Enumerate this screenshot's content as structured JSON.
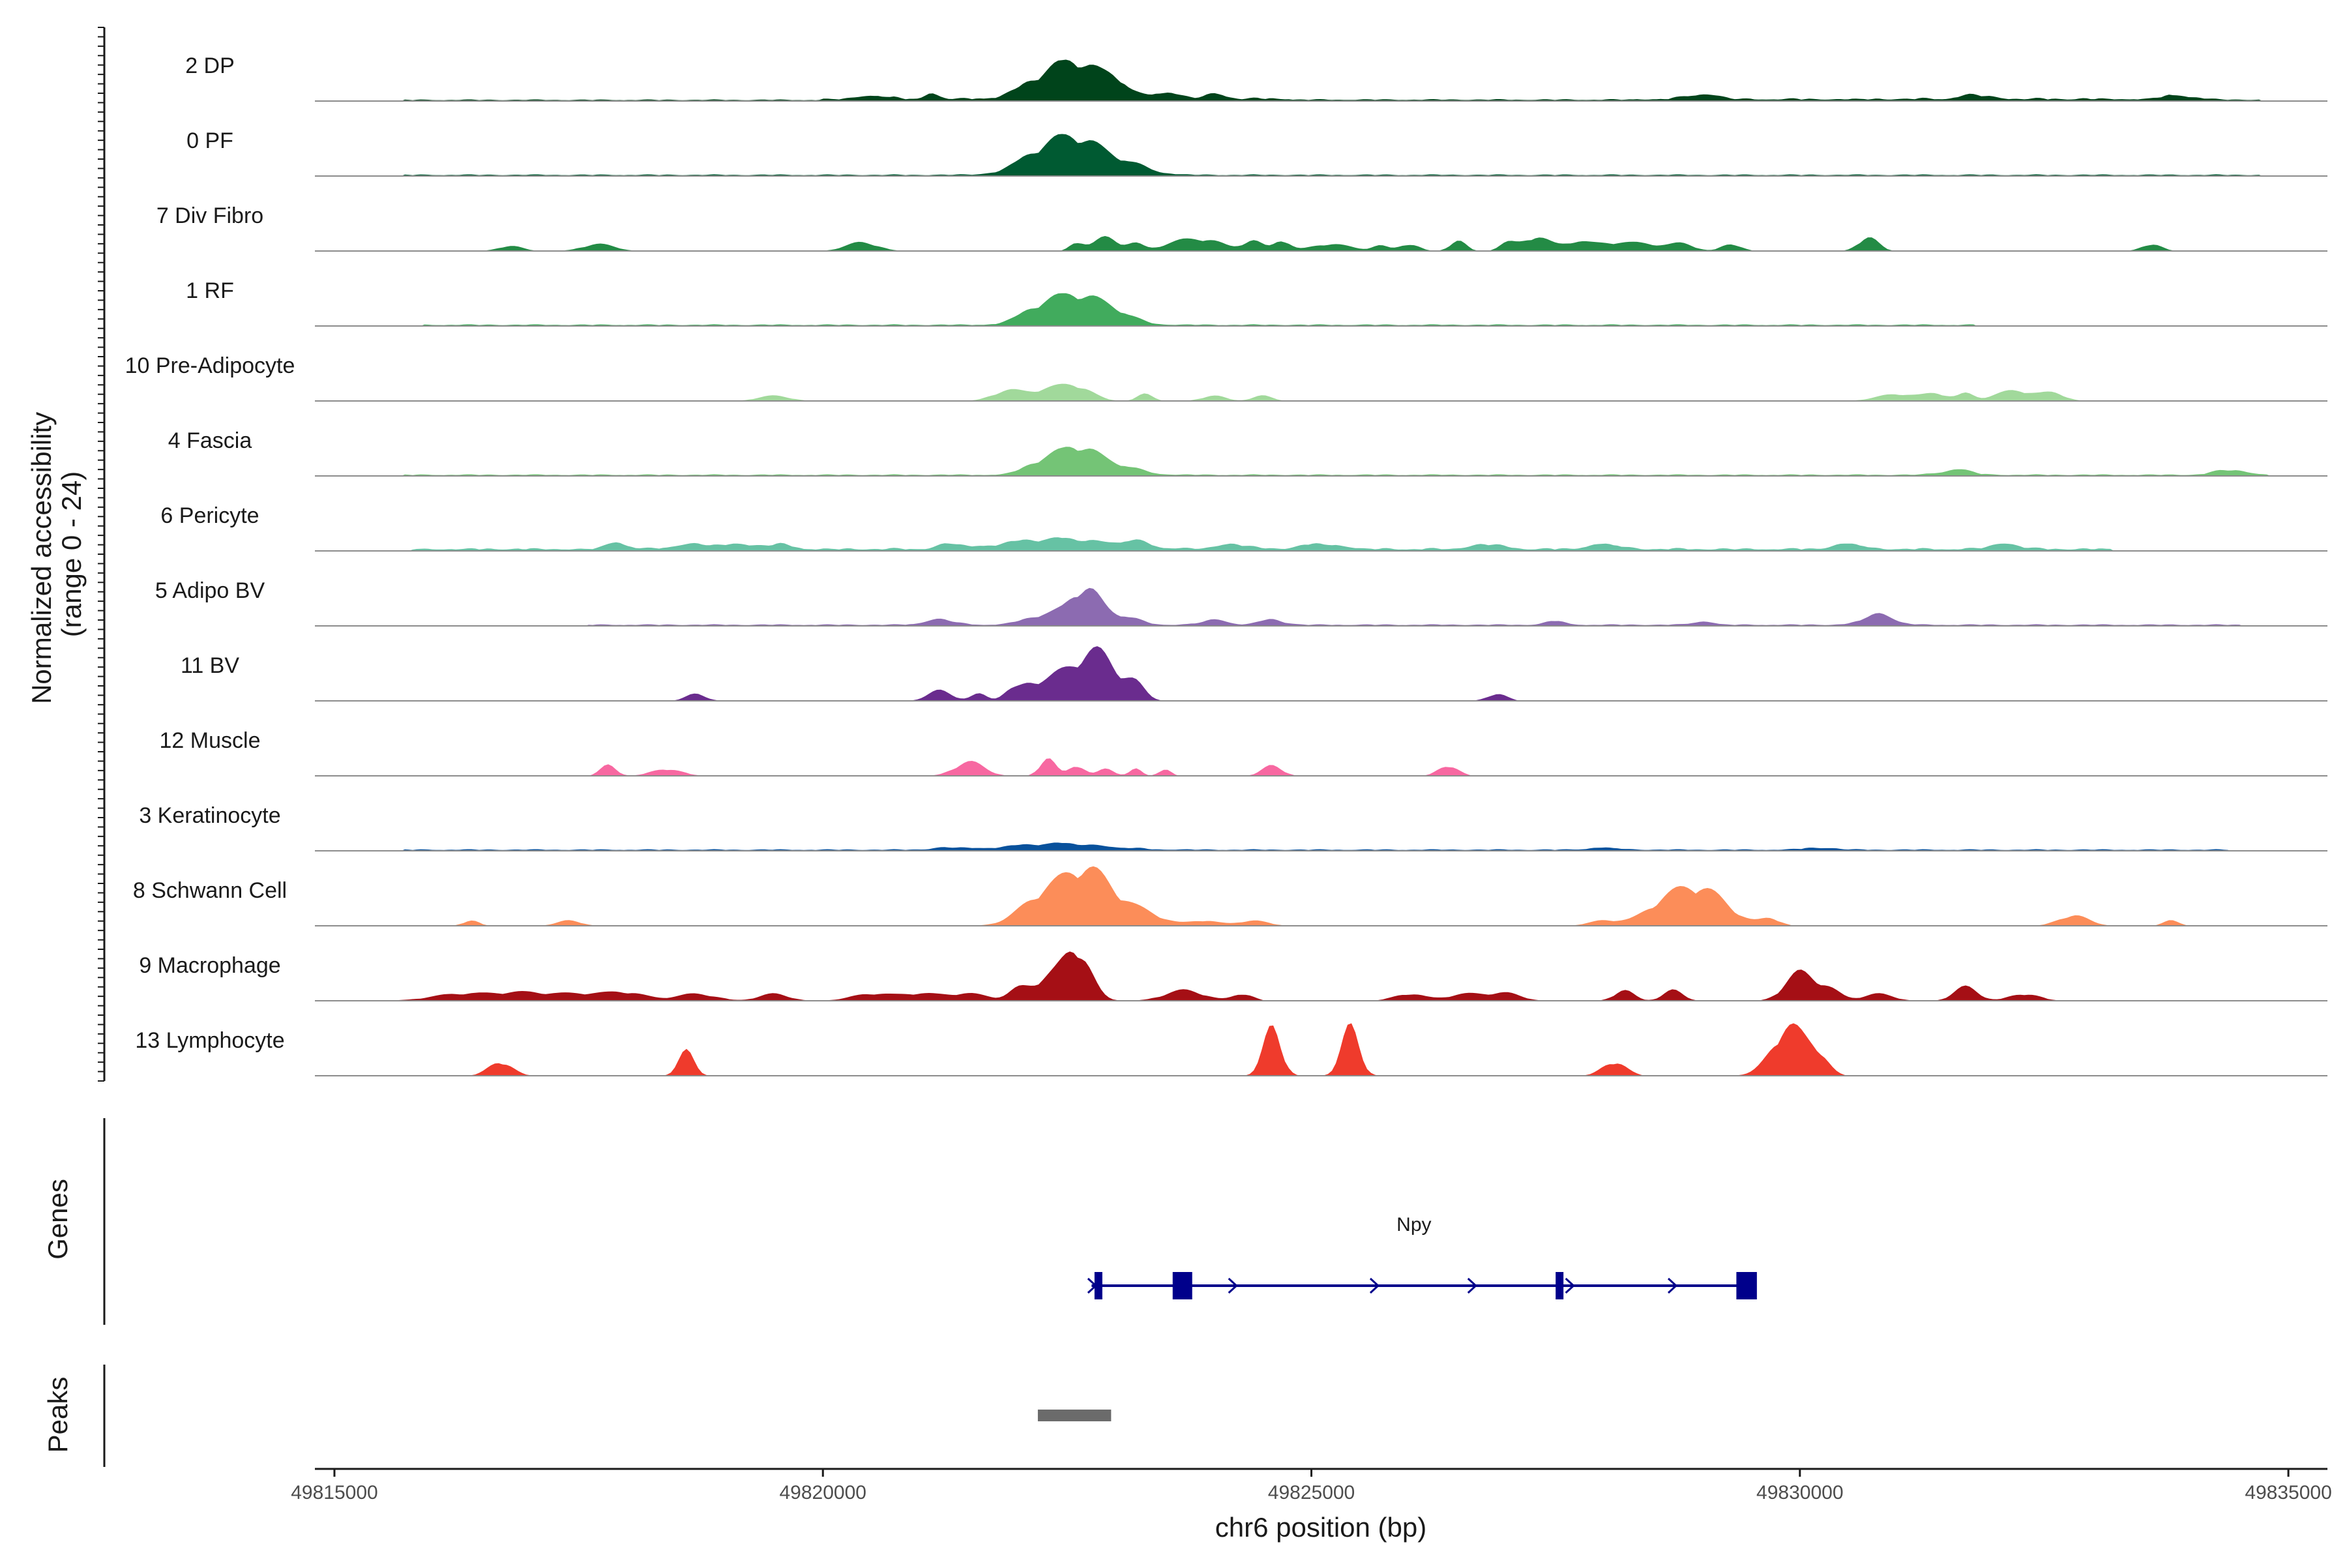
{
  "chart_data": {
    "type": "area",
    "title": "",
    "ylabel_line1": "Normalized accessibility",
    "ylabel_line2": "(range 0 - 24)",
    "xlabel": "chr6 position (bp)",
    "xlim": [
      49814800,
      49835400
    ],
    "ylim": [
      0,
      24
    ],
    "xticks": [
      49815000,
      49820000,
      49825000,
      49830000,
      49835000
    ],
    "xtick_labels": [
      "49815000",
      "49820000",
      "49825000",
      "49830000",
      "49835000"
    ],
    "tracks": [
      {
        "label": "2 DP",
        "color": "#00441b",
        "base": [
          [
            49815700,
            0.5
          ],
          [
            49820000,
            0.8
          ],
          [
            49820700,
            1.0
          ],
          [
            49824800,
            0.6
          ],
          [
            49828300,
            0.8
          ],
          [
            49830700,
            0.9
          ],
          [
            49833800,
            0.6
          ],
          [
            49834700,
            0.4
          ]
        ],
        "peaks": [
          [
            49822600,
            10,
            280
          ],
          [
            49822200,
            3,
            220
          ],
          [
            49823000,
            3,
            120
          ],
          [
            49823500,
            2,
            120
          ],
          [
            49824000,
            1.5,
            100
          ],
          [
            49820500,
            1.2,
            120
          ],
          [
            49821100,
            1.5,
            60
          ],
          [
            49829000,
            1.5,
            150
          ],
          [
            49831800,
            1.2,
            150
          ],
          [
            49833900,
            1.2,
            150
          ]
        ]
      },
      {
        "label": "0 PF",
        "color": "#005a32",
        "base": [
          [
            49815700,
            0.5
          ],
          [
            49834700,
            0.5
          ]
        ],
        "peaks": [
          [
            49822600,
            10,
            320
          ],
          [
            49822200,
            3,
            250
          ],
          [
            49823200,
            1.5,
            200
          ]
        ]
      },
      {
        "label": "7 Div Fibro",
        "color": "#238b45",
        "base": [],
        "peaks": [
          [
            49816800,
            1.5,
            120
          ],
          [
            49817700,
            2,
            160
          ],
          [
            49820400,
            2.5,
            160
          ],
          [
            49822600,
            2.5,
            70
          ],
          [
            49822900,
            4,
            120
          ],
          [
            49823200,
            2,
            80
          ],
          [
            49823700,
            3,
            200
          ],
          [
            49824000,
            2,
            150
          ],
          [
            49824400,
            3,
            100
          ],
          [
            49824700,
            3,
            80
          ],
          [
            49825200,
            2,
            200
          ],
          [
            49825700,
            1.5,
            80
          ],
          [
            49826000,
            2,
            100
          ],
          [
            49826500,
            3,
            80
          ],
          [
            49827000,
            2,
            80
          ],
          [
            49827300,
            4,
            150
          ],
          [
            49827700,
            2,
            120
          ],
          [
            49828000,
            2,
            200
          ],
          [
            49828400,
            2,
            200
          ],
          [
            49828800,
            2,
            120
          ],
          [
            49829300,
            2,
            100
          ],
          [
            49830700,
            4,
            100
          ],
          [
            49833600,
            2,
            100
          ]
        ]
      },
      {
        "label": "1 RF",
        "color": "#41ab5d",
        "base": [
          [
            49815900,
            0.5
          ],
          [
            49831800,
            0.5
          ]
        ],
        "peaks": [
          [
            49822600,
            8,
            280
          ],
          [
            49822200,
            3,
            200
          ],
          [
            49823000,
            2,
            200
          ]
        ]
      },
      {
        "label": "10 Pre-Adipocyte",
        "color": "#a1d99b",
        "base": [],
        "peaks": [
          [
            49819500,
            1.5,
            160
          ],
          [
            49821900,
            3,
            160
          ],
          [
            49822300,
            3,
            160
          ],
          [
            49822600,
            4,
            160
          ],
          [
            49823300,
            2,
            80
          ],
          [
            49824000,
            1.5,
            120
          ],
          [
            49824500,
            1.5,
            100
          ],
          [
            49831000,
            2,
            200
          ],
          [
            49831400,
            2,
            120
          ],
          [
            49831700,
            2,
            80
          ],
          [
            49832200,
            3,
            200
          ],
          [
            49832600,
            2,
            120
          ]
        ]
      },
      {
        "label": "4 Fascia",
        "color": "#74c476",
        "base": [
          [
            49815700,
            0.5
          ],
          [
            49834800,
            0.5
          ]
        ],
        "peaks": [
          [
            49822600,
            8,
            250
          ],
          [
            49822200,
            2,
            150
          ],
          [
            49823100,
            1.5,
            200
          ],
          [
            49831600,
            1.5,
            150
          ],
          [
            49834400,
            1.5,
            150
          ]
        ]
      },
      {
        "label": "6 Pericyte",
        "color": "#66c2a4",
        "base": [
          [
            49815800,
            0.8
          ],
          [
            49833200,
            0.6
          ]
        ],
        "peaks": [
          [
            49822400,
            3,
            500
          ],
          [
            49817900,
            2,
            100
          ],
          [
            49818700,
            1.5,
            200
          ],
          [
            49819200,
            1.5,
            150
          ],
          [
            49819600,
            1.5,
            100
          ],
          [
            49821300,
            1.5,
            100
          ],
          [
            49823200,
            1.5,
            150
          ],
          [
            49824200,
            1.5,
            150
          ],
          [
            49825100,
            1.5,
            200
          ],
          [
            49826800,
            1.5,
            150
          ],
          [
            49828000,
            1.5,
            150
          ],
          [
            49830500,
            1.5,
            150
          ],
          [
            49832100,
            1.5,
            150
          ]
        ]
      },
      {
        "label": "5 Adipo BV",
        "color": "#8c6bb1",
        "base": [
          [
            49817600,
            0.5
          ],
          [
            49834500,
            0.5
          ]
        ],
        "peaks": [
          [
            49822700,
            10,
            160
          ],
          [
            49822300,
            3,
            200
          ],
          [
            49823100,
            2,
            150
          ],
          [
            49821200,
            1.5,
            150
          ],
          [
            49824000,
            1.5,
            120
          ],
          [
            49824600,
            1.5,
            120
          ],
          [
            49830800,
            3,
            150
          ],
          [
            49827500,
            1,
            100
          ],
          [
            49829000,
            1,
            100
          ]
        ]
      },
      {
        "label": "11 BV",
        "color": "#6a2c8e",
        "base": [],
        "peaks": [
          [
            49822800,
            14,
            200
          ],
          [
            49822400,
            6,
            160
          ],
          [
            49822100,
            4,
            120
          ],
          [
            49823200,
            4,
            100
          ],
          [
            49821200,
            3,
            120
          ],
          [
            49821600,
            2,
            80
          ],
          [
            49821900,
            2,
            80
          ],
          [
            49818700,
            2,
            100
          ],
          [
            49826900,
            2,
            100
          ]
        ]
      },
      {
        "label": "12 Muscle",
        "color": "#f768a1",
        "base": [],
        "peaks": [
          [
            49817800,
            3,
            80
          ],
          [
            49818400,
            2,
            150
          ],
          [
            49821500,
            4,
            150
          ],
          [
            49822300,
            5,
            80
          ],
          [
            49822600,
            3,
            80
          ],
          [
            49822900,
            2,
            80
          ],
          [
            49823200,
            2,
            60
          ],
          [
            49823500,
            2,
            60
          ],
          [
            49824600,
            3,
            100
          ],
          [
            49826400,
            3,
            100
          ]
        ]
      },
      {
        "label": "3 Keratinocyte",
        "color": "#08519c",
        "base": [
          [
            49815700,
            0.5
          ],
          [
            49834400,
            0.5
          ]
        ],
        "peaks": [
          [
            49822400,
            1.8,
            450
          ],
          [
            49821300,
            0.6,
            150
          ],
          [
            49828000,
            0.6,
            150
          ],
          [
            49830200,
            0.6,
            150
          ]
        ]
      },
      {
        "label": "8 Schwann Cell",
        "color": "#fc8d59",
        "base": [],
        "peaks": [
          [
            49822700,
            16,
            280
          ],
          [
            49822200,
            6,
            220
          ],
          [
            49823300,
            3,
            200
          ],
          [
            49829000,
            10,
            260
          ],
          [
            49828600,
            5,
            220
          ],
          [
            49829700,
            2,
            100
          ],
          [
            49832800,
            3,
            150
          ],
          [
            49833800,
            1.5,
            80
          ],
          [
            49816400,
            1.5,
            80
          ],
          [
            49817400,
            1.5,
            120
          ],
          [
            49823900,
            1.5,
            150
          ],
          [
            49824400,
            1.5,
            150
          ],
          [
            49828000,
            1.5,
            150
          ]
        ]
      },
      {
        "label": "9 Macrophage",
        "color": "#a50f15",
        "base": [],
        "peaks": [
          [
            49822600,
            14,
            140
          ],
          [
            49822300,
            6,
            150
          ],
          [
            49822000,
            3,
            100
          ],
          [
            49830000,
            8,
            150
          ],
          [
            49830300,
            3,
            120
          ],
          [
            49831700,
            4,
            120
          ],
          [
            49828200,
            3,
            100
          ],
          [
            49828700,
            3,
            100
          ],
          [
            49823700,
            3,
            200
          ],
          [
            49816300,
            2,
            300
          ],
          [
            49816900,
            2,
            250
          ],
          [
            49817500,
            2,
            300
          ],
          [
            49818000,
            2,
            200
          ],
          [
            49818700,
            2,
            200
          ],
          [
            49819500,
            2,
            150
          ],
          [
            49820500,
            2,
            200
          ],
          [
            49821000,
            2,
            200
          ],
          [
            49821500,
            2,
            200
          ],
          [
            49824300,
            2,
            100
          ],
          [
            49826000,
            2,
            150
          ],
          [
            49826600,
            2,
            200
          ],
          [
            49827000,
            2,
            150
          ],
          [
            49830800,
            2,
            150
          ],
          [
            49832300,
            2,
            150
          ]
        ]
      },
      {
        "label": "13 Lymphocyte",
        "color": "#ef3b2c",
        "base": [],
        "peaks": [
          [
            49816700,
            4,
            120
          ],
          [
            49818600,
            7,
            80
          ],
          [
            49824600,
            14,
            90
          ],
          [
            49825400,
            14,
            90
          ],
          [
            49828100,
            4,
            120
          ],
          [
            49829900,
            14,
            180
          ],
          [
            49830200,
            4,
            100
          ]
        ]
      }
    ],
    "genes_label": "Genes",
    "gene": {
      "name": "Npy",
      "strand": "+",
      "start": 49822750,
      "end": 49829400,
      "color": "#00008b",
      "exons": [
        [
          49822780,
          49822840
        ],
        [
          49823580,
          49823780
        ],
        [
          49827500,
          49827560
        ],
        [
          49829350,
          49829560
        ]
      ]
    },
    "peaks_label": "Peaks",
    "peaks_regions": [
      [
        49822200,
        49822950
      ]
    ],
    "peaks_color": "#6b6b6b"
  }
}
